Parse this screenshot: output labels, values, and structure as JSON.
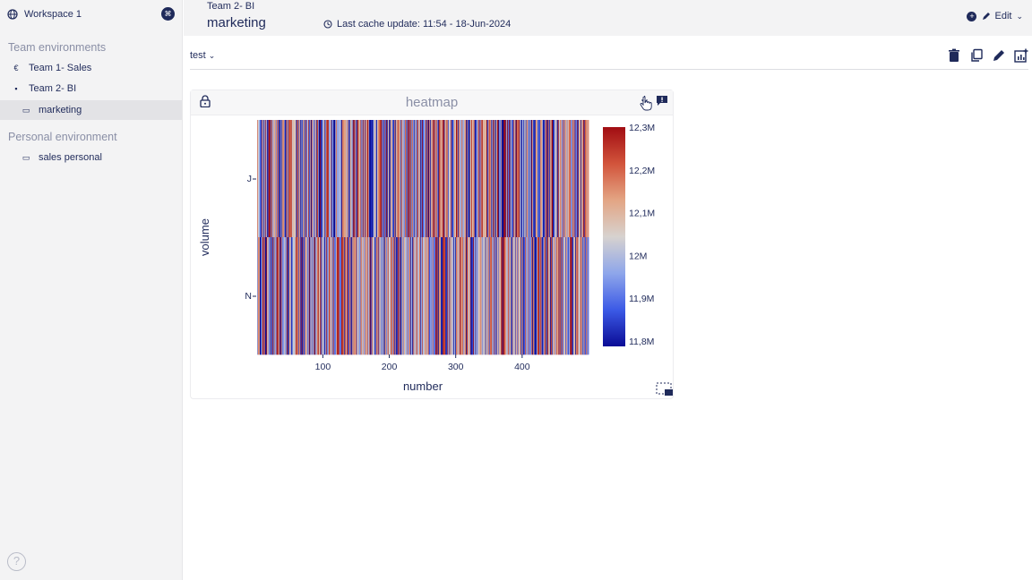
{
  "workspace": {
    "name": "Workspace 1"
  },
  "sidebar": {
    "team_title": "Team environments",
    "team_items": [
      {
        "icon": "€",
        "label": "Team 1- Sales"
      },
      {
        "icon": "▪",
        "label": "Team 2- BI"
      },
      {
        "icon": "▭",
        "label": "marketing"
      }
    ],
    "personal_title": "Personal environment",
    "personal_items": [
      {
        "icon": "▭",
        "label": "sales personal"
      }
    ],
    "help": "?"
  },
  "header": {
    "breadcrumb": "Team 2- BI",
    "title": "marketing",
    "cache": "Last cache update: 11:54 - 18-Jun-2024",
    "edit": "Edit"
  },
  "tabs": {
    "active": "test"
  },
  "panel": {
    "title": "heatmap"
  },
  "chart_data": {
    "type": "heatmap",
    "xlabel": "number",
    "ylabel": "volume",
    "x_ticks": [
      100,
      200,
      300,
      400
    ],
    "x_range": [
      1,
      500
    ],
    "y_categories": [
      "J",
      "N"
    ],
    "colorbar": {
      "ticks": [
        "12,3M",
        "12,2M",
        "12,1M",
        "12M",
        "11,9M",
        "11,8M"
      ],
      "min": 11800000,
      "max": 12300000
    },
    "colors": [
      "#0a0c96",
      "#3c5ae6",
      "#8ea6ea",
      "#d7d2cf",
      "#e3a584",
      "#d2543b",
      "#a10d12"
    ]
  }
}
